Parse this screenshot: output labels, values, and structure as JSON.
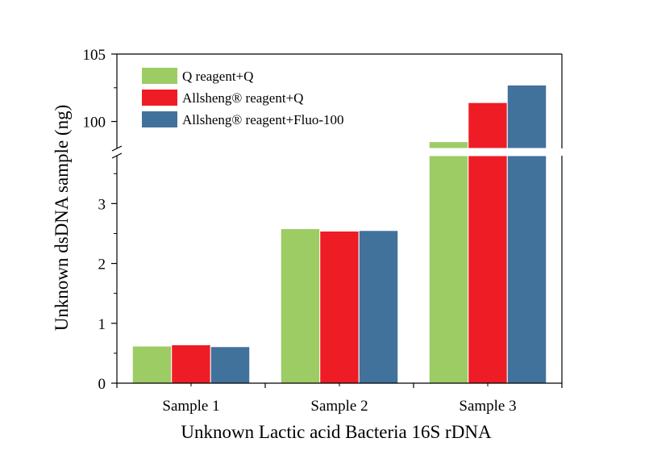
{
  "chart_data": {
    "type": "bar",
    "xlabel": "Unknown Lactic acid Bacteria 16S rDNA",
    "ylabel": "Unknown dsDNA sample (ng)",
    "categories": [
      "Sample 1",
      "Sample 2",
      "Sample 3"
    ],
    "series": [
      {
        "name": "Q reagent+Q",
        "color": "#9dcc64",
        "values": [
          0.62,
          2.58,
          98.5
        ]
      },
      {
        "name": "Allsheng® reagent+Q",
        "color": "#ee1c25",
        "values": [
          0.64,
          2.54,
          101.4
        ]
      },
      {
        "name": "Allsheng® reagent+Fluo-100",
        "color": "#41729c",
        "values": [
          0.61,
          2.55,
          102.7
        ]
      }
    ],
    "y_axis_break": true,
    "lower_segment": {
      "ylim": [
        0,
        3.8
      ],
      "ticks": [
        "0",
        "1",
        "2",
        "3"
      ]
    },
    "upper_segment": {
      "ylim": [
        98,
        105
      ],
      "ticks": [
        "100",
        "105"
      ]
    },
    "legend_position": "top-left",
    "grid": false
  }
}
